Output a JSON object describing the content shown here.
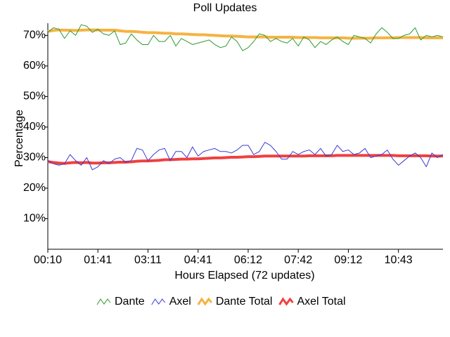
{
  "chart_data": {
    "type": "line",
    "title": "Poll Updates",
    "x_label": "Hours Elapsed (72 updates)",
    "y_label": "Percentage",
    "categories": [
      "00:10",
      null,
      null,
      null,
      null,
      null,
      null,
      null,
      null,
      "01:41",
      null,
      null,
      null,
      null,
      null,
      null,
      null,
      null,
      "03:11",
      null,
      null,
      null,
      null,
      null,
      null,
      null,
      null,
      "04:41",
      null,
      null,
      null,
      null,
      null,
      null,
      null,
      null,
      "06:12",
      null,
      null,
      null,
      null,
      null,
      null,
      null,
      null,
      "07:42",
      null,
      null,
      null,
      null,
      null,
      null,
      null,
      null,
      "09:12",
      null,
      null,
      null,
      null,
      null,
      null,
      null,
      null,
      "10:43",
      null,
      null,
      null,
      null,
      null,
      null,
      null,
      null
    ],
    "ylim": [
      0,
      74
    ],
    "yticks": [
      {
        "value": 10,
        "label": "10%"
      },
      {
        "value": 20,
        "label": "20%"
      },
      {
        "value": 30,
        "label": "30%"
      },
      {
        "value": 40,
        "label": "40%"
      },
      {
        "value": 50,
        "label": "50%"
      },
      {
        "value": 60,
        "label": "60%"
      },
      {
        "value": 70,
        "label": "70%"
      }
    ],
    "grid": false,
    "legend": "bottom",
    "series": [
      {
        "name": "Dante",
        "color": "#2e9a2e",
        "width": 1,
        "values": [
          71,
          72.5,
          72,
          69,
          71.5,
          70,
          73.5,
          73,
          71,
          72,
          70.5,
          70,
          71.5,
          67,
          67.5,
          70.5,
          68.5,
          67,
          67,
          70,
          68,
          68,
          70,
          66.5,
          69,
          68,
          67,
          67.5,
          68,
          68.5,
          67,
          66,
          66.5,
          69.5,
          68,
          65,
          66,
          68,
          70.5,
          70,
          68,
          69,
          68,
          67.5,
          69,
          66.5,
          69.5,
          68.5,
          66,
          68,
          67,
          68.5,
          69.5,
          68,
          67,
          70,
          69.5,
          69,
          67.5,
          70.5,
          72.5,
          71,
          69,
          69,
          70,
          70.5,
          72.5,
          68.5,
          70,
          69.5,
          70,
          69.5
        ]
      },
      {
        "name": "Axel",
        "color": "#3a3ad0",
        "width": 1,
        "values": [
          29,
          28,
          27.5,
          28,
          31,
          29,
          27.5,
          30,
          26,
          27,
          29,
          28,
          29.5,
          30,
          28.5,
          29,
          33,
          32.5,
          29,
          31,
          32.5,
          33,
          29,
          32,
          32,
          30,
          33.5,
          30.5,
          32,
          32.5,
          33,
          32,
          32,
          31.5,
          32.5,
          34,
          34,
          31,
          32,
          35,
          34,
          32,
          29.5,
          29.5,
          32,
          31,
          32,
          32.5,
          31,
          33,
          30.5,
          31,
          34,
          32,
          32.5,
          31,
          31.5,
          33,
          30,
          30.5,
          31,
          32.5,
          29.5,
          27.5,
          29,
          30.5,
          31.5,
          30,
          27,
          31.5,
          30,
          31
        ]
      },
      {
        "name": "Dante Total",
        "color": "#f5b342",
        "width": 4,
        "values": [
          71.3,
          71.6,
          71.8,
          71.7,
          71.7,
          71.6,
          71.7,
          71.8,
          71.8,
          71.8,
          71.7,
          71.7,
          71.7,
          71.5,
          71.3,
          71.3,
          71.2,
          71.0,
          70.9,
          70.9,
          70.8,
          70.7,
          70.7,
          70.5,
          70.5,
          70.4,
          70.3,
          70.2,
          70.2,
          70.1,
          70.0,
          69.9,
          69.8,
          69.8,
          69.7,
          69.6,
          69.5,
          69.5,
          69.5,
          69.5,
          69.4,
          69.4,
          69.4,
          69.4,
          69.4,
          69.3,
          69.3,
          69.3,
          69.3,
          69.2,
          69.2,
          69.2,
          69.2,
          69.2,
          69.1,
          69.1,
          69.1,
          69.1,
          69.1,
          69.2,
          69.2,
          69.2,
          69.2,
          69.3,
          69.3,
          69.3,
          69.3,
          69.3,
          69.2,
          69.2,
          69.2,
          69.2
        ]
      },
      {
        "name": "Axel Total",
        "color": "#f04040",
        "width": 4,
        "values": [
          28.7,
          28.4,
          28.2,
          28.1,
          28.3,
          28.4,
          28.3,
          28.4,
          28.2,
          28.2,
          28.3,
          28.3,
          28.4,
          28.5,
          28.5,
          28.6,
          28.8,
          28.9,
          28.9,
          29.0,
          29.1,
          29.3,
          29.3,
          29.4,
          29.5,
          29.5,
          29.6,
          29.6,
          29.7,
          29.8,
          29.9,
          29.9,
          30.0,
          30.1,
          30.1,
          30.2,
          30.3,
          30.3,
          30.4,
          30.5,
          30.5,
          30.5,
          30.5,
          30.5,
          30.5,
          30.5,
          30.5,
          30.6,
          30.6,
          30.6,
          30.6,
          30.6,
          30.7,
          30.7,
          30.7,
          30.7,
          30.7,
          30.7,
          30.7,
          30.7,
          30.7,
          30.7,
          30.7,
          30.6,
          30.6,
          30.6,
          30.6,
          30.6,
          30.6,
          30.5,
          30.5,
          30.5
        ]
      }
    ]
  }
}
